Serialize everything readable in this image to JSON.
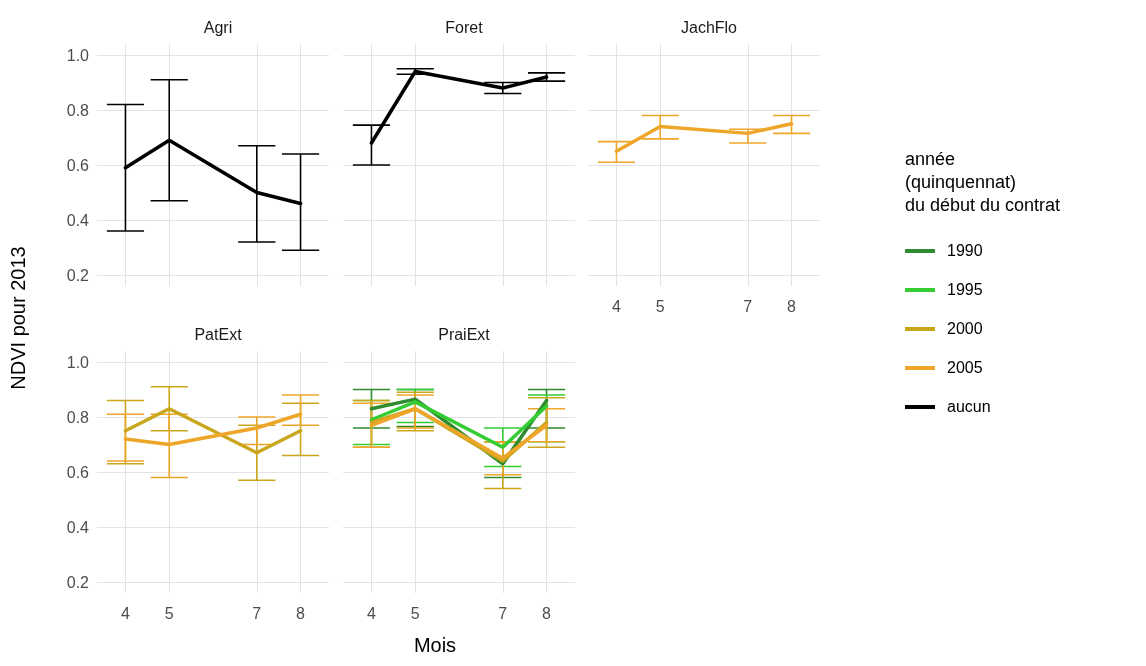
{
  "chart_data": [
    {
      "type": "line",
      "title": "Agri",
      "ylabel": "NDVI pour 2013",
      "x": [
        4,
        5,
        7,
        8
      ],
      "xlim": [
        3.35,
        8.65
      ],
      "xticks": [
        4,
        5,
        7,
        8
      ],
      "ylim": [
        0.16,
        1.04
      ],
      "yticks": [
        0.2,
        0.4,
        0.6,
        0.8,
        {
          "value": 1,
          "label": "1.0"
        }
      ],
      "grid": true,
      "tick_labels": "y",
      "marker": "none",
      "line_style": "solid",
      "legend": "right",
      "legend_title": "année\n(quinquennat)\ndu début du contrat",
      "series": [
        {
          "name": "aucun",
          "color": "#000000",
          "values": [
            0.59,
            0.69,
            0.5,
            0.46
          ],
          "errors": [
            [
              0.36,
              0.82
            ],
            [
              0.47,
              0.91
            ],
            [
              0.32,
              0.67
            ],
            [
              0.29,
              0.64
            ]
          ]
        }
      ]
    },
    {
      "type": "line",
      "title": "Foret",
      "x": [
        4,
        5,
        7,
        8
      ],
      "xlim": [
        3.35,
        8.65
      ],
      "xticks": [
        4,
        5,
        7,
        8
      ],
      "ylim": [
        0.16,
        1.04
      ],
      "yticks": [
        0.2,
        0.4,
        0.6,
        0.8,
        1
      ],
      "grid": true,
      "tick_labels": false,
      "marker": "none",
      "line_style": "solid",
      "legend": "right",
      "series": [
        {
          "name": "aucun",
          "color": "#000000",
          "values": [
            0.68,
            0.94,
            0.88,
            0.92
          ],
          "errors": [
            [
              0.6,
              0.745
            ],
            [
              0.93,
              0.95
            ],
            [
              0.86,
              0.9
            ],
            [
              0.905,
              0.935
            ]
          ]
        }
      ]
    },
    {
      "type": "line",
      "title": "JachFlo",
      "x": [
        4,
        5,
        7,
        8
      ],
      "xlim": [
        3.35,
        8.65
      ],
      "xticks": [
        4,
        5,
        7,
        8
      ],
      "ylim": [
        0.16,
        1.04
      ],
      "yticks": [
        0.2,
        0.4,
        0.6,
        0.8,
        1
      ],
      "grid": true,
      "tick_labels": "x",
      "marker": "none",
      "line_style": "solid",
      "legend": "right",
      "series": [
        {
          "name": "2005",
          "color": "#eea62a",
          "values": [
            0.65,
            0.74,
            0.715,
            0.75
          ],
          "errors": [
            [
              0.61,
              0.685
            ],
            [
              0.695,
              0.78
            ],
            [
              0.68,
              0.73
            ],
            [
              0.715,
              0.78
            ]
          ]
        }
      ]
    },
    {
      "type": "line",
      "title": "PatExt",
      "xlabel": "Mois",
      "x": [
        4,
        5,
        7,
        8
      ],
      "xlim": [
        3.35,
        8.65
      ],
      "xticks": [
        4,
        5,
        7,
        8
      ],
      "ylim": [
        0.16,
        1.04
      ],
      "yticks": [
        0.2,
        0.4,
        0.6,
        0.8,
        {
          "value": 1,
          "label": "1.0"
        }
      ],
      "grid": true,
      "marker": "none",
      "line_style": "solid",
      "legend": "right",
      "series": [
        {
          "name": "2000",
          "color": "#c9a61c",
          "values": [
            0.75,
            0.83,
            0.67,
            0.75
          ],
          "errors": [
            [
              0.63,
              0.86
            ],
            [
              0.75,
              0.91
            ],
            [
              0.57,
              0.77
            ],
            [
              0.66,
              0.85
            ]
          ]
        },
        {
          "name": "2005",
          "color": "#eea62a",
          "values": [
            0.72,
            0.7,
            0.76,
            0.81
          ],
          "errors": [
            [
              0.64,
              0.81
            ],
            [
              0.58,
              0.81
            ],
            [
              0.7,
              0.8
            ],
            [
              0.77,
              0.88
            ]
          ]
        }
      ]
    },
    {
      "type": "line",
      "title": "PraiExt",
      "x": [
        4,
        5,
        7,
        8
      ],
      "xlim": [
        3.35,
        8.65
      ],
      "xticks": [
        4,
        5,
        7,
        8
      ],
      "ylim": [
        0.16,
        1.04
      ],
      "yticks": [
        0.2,
        0.4,
        0.6,
        0.8,
        1
      ],
      "grid": true,
      "tick_labels": "x",
      "marker": "none",
      "line_style": "solid",
      "legend": "right",
      "series": [
        {
          "name": "1990",
          "color": "#2e8b2e",
          "values": [
            0.83,
            0.865,
            0.63,
            0.86
          ],
          "errors": [
            [
              0.76,
              0.9
            ],
            [
              0.765,
              0.9
            ],
            [
              0.58,
              0.71
            ],
            [
              0.76,
              0.9
            ]
          ]
        },
        {
          "name": "1995",
          "color": "#33cc33",
          "values": [
            0.79,
            0.855,
            0.69,
            0.84
          ],
          "errors": [
            [
              0.7,
              0.86
            ],
            [
              0.78,
              0.9
            ],
            [
              0.62,
              0.76
            ],
            [
              0.71,
              0.88
            ]
          ]
        },
        {
          "name": "2000",
          "color": "#c9a61c",
          "values": [
            0.78,
            0.83,
            0.64,
            0.78
          ],
          "errors": [
            [
              0.69,
              0.86
            ],
            [
              0.75,
              0.89
            ],
            [
              0.54,
              0.71
            ],
            [
              0.69,
              0.87
            ]
          ]
        },
        {
          "name": "2005",
          "color": "#eea62a",
          "values": [
            0.77,
            0.83,
            0.65,
            0.77
          ],
          "errors": [
            [
              0.69,
              0.85
            ],
            [
              0.76,
              0.88
            ],
            [
              0.59,
              0.71
            ],
            [
              0.71,
              0.83
            ]
          ]
        }
      ]
    }
  ]
}
